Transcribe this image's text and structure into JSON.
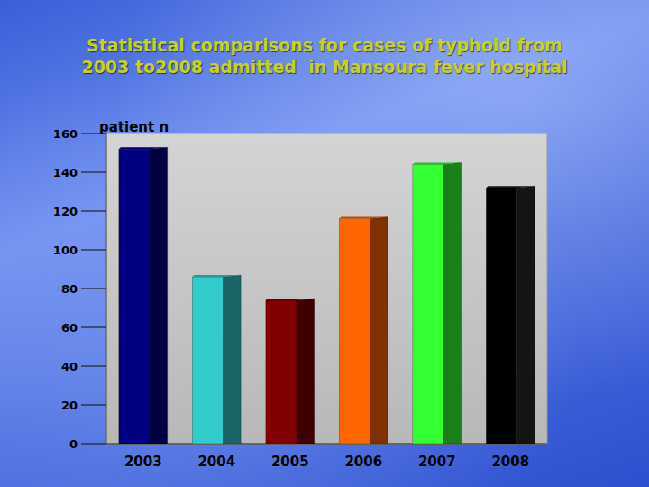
{
  "chart_data": {
    "type": "bar",
    "title": "Statistical comparisons for cases of typhoid from\n2003 to2008 admitted  in Mansoura fever hospital",
    "y_label": "patient n",
    "categories": [
      "2003",
      "2004",
      "2005",
      "2006",
      "2007",
      "2008"
    ],
    "values": [
      152,
      86,
      74,
      116,
      144,
      132
    ],
    "colors": [
      "#000080",
      "#33cccc",
      "#800000",
      "#ff6600",
      "#33ff33",
      "#000000"
    ],
    "ylim": [
      0,
      160
    ],
    "yticks": [
      0,
      20,
      40,
      60,
      80,
      100,
      120,
      140,
      160
    ],
    "grid": false
  }
}
